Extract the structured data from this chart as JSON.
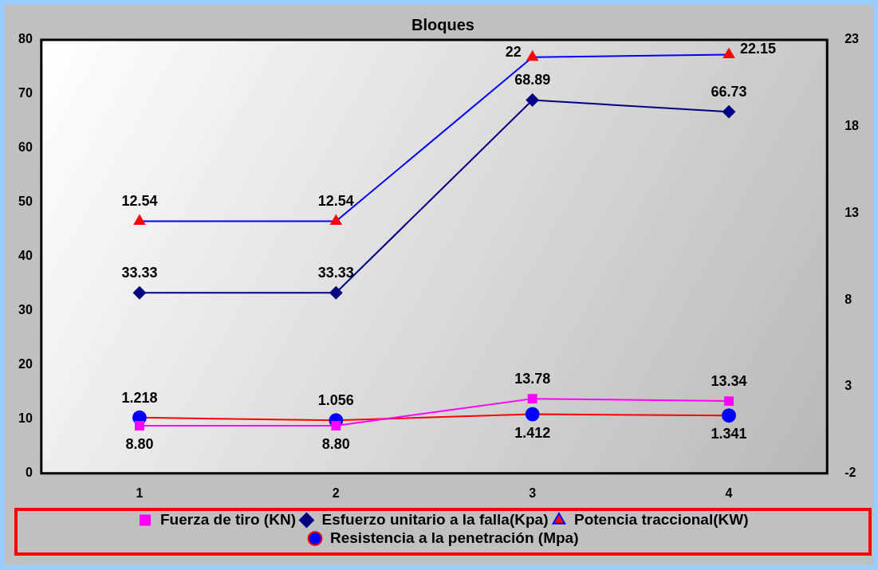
{
  "chart_data": {
    "type": "line",
    "title": "Bloques",
    "categories": [
      "1",
      "2",
      "3",
      "4"
    ],
    "series": [
      {
        "name": "Fuerza de tiro (KN)",
        "color": "#ff00ff",
        "colors": [
          "#ff00ff",
          "#ff00ff",
          "#ff00ff",
          "#ff00ff"
        ],
        "marker": "square",
        "values": [
          8.8,
          8.8,
          13.78,
          13.34
        ],
        "value_labels": [
          "8.80",
          "8.80",
          "13.78",
          "13.34"
        ]
      },
      {
        "name": "Esfuerzo unitario a la falla(Kpa)",
        "color": "#000080",
        "colors": [
          "#000080",
          "#000080",
          "#000080",
          "#000080"
        ],
        "marker": "diamond",
        "values": [
          33.33,
          33.33,
          68.89,
          66.73
        ],
        "value_labels": [
          "33.33",
          "33.33",
          "68.89",
          "66.73"
        ]
      },
      {
        "name": "Potencia traccional(KW)",
        "color": "#0000ff",
        "colors": [
          "#ff0000",
          "#ff0000",
          "#ff0000",
          "#ff0000"
        ],
        "marker": "triangle",
        "axis": "y2",
        "values": [
          12.54,
          12.54,
          22,
          22.15
        ],
        "value_labels": [
          "12.54",
          "12.54",
          "22",
          "22.15"
        ]
      },
      {
        "name": "Resistencia a la penetración (Mpa)",
        "color": "#ff0000",
        "colors": [
          "#0000ff",
          "#0000ff",
          "#0000ff",
          "#0000ff"
        ],
        "marker": "circle",
        "axis": "y2",
        "values": [
          1.218,
          1.056,
          1.412,
          1.341
        ],
        "value_labels": [
          "1.218",
          "1.056",
          "1.412",
          "1.341"
        ]
      }
    ],
    "ylim": [
      0,
      80
    ],
    "yticks": [
      0,
      10,
      20,
      30,
      40,
      50,
      60,
      70,
      80
    ],
    "y2lim": [
      -2,
      23
    ],
    "y2ticks": [
      -2,
      3,
      8,
      13,
      18,
      23
    ],
    "grid": false,
    "legend": "bottom",
    "line_style": "solid"
  }
}
